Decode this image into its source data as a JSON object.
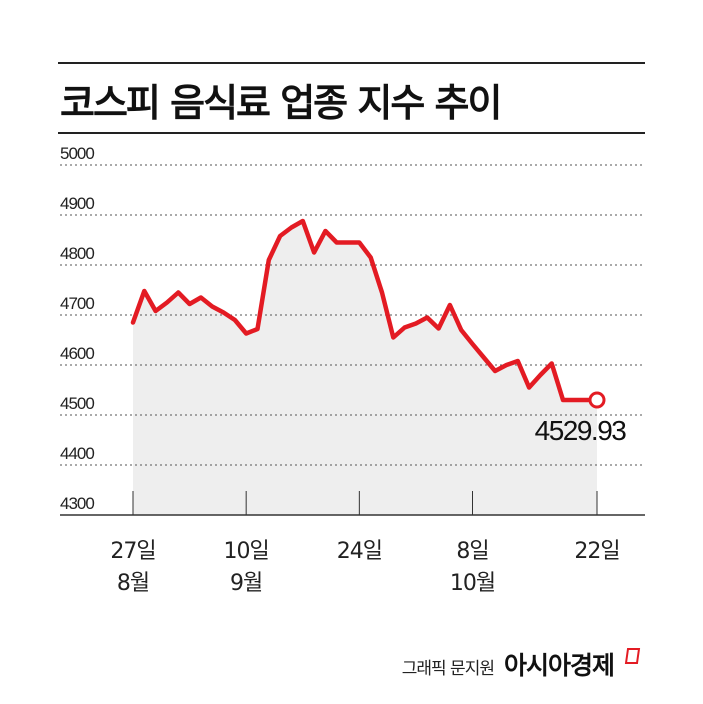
{
  "chart_data": {
    "type": "line",
    "title": "코스피 음식료 업종 지수 추이",
    "ylim": [
      4300,
      5000
    ],
    "yticks": [
      5000,
      4900,
      4800,
      4700,
      4600,
      4500,
      4400,
      4300
    ],
    "x_tick_labels": [
      {
        "index": 0,
        "lines": [
          "27일",
          "8월"
        ]
      },
      {
        "index": 10,
        "lines": [
          "10일",
          "9월"
        ]
      },
      {
        "index": 20,
        "lines": [
          "24일"
        ]
      },
      {
        "index": 30,
        "lines": [
          "8일",
          "10월"
        ]
      },
      {
        "index": 41,
        "lines": [
          "22일"
        ]
      }
    ],
    "series": [
      {
        "values": [
          4685,
          4748,
          4708,
          4725,
          4745,
          4722,
          4735,
          4717,
          4705,
          4690,
          4663,
          4672,
          4810,
          4858,
          4875,
          4888,
          4825,
          4868,
          4845,
          4845,
          4845,
          4815,
          4745,
          4655,
          4675,
          4683,
          4695,
          4673,
          4720,
          4670,
          4642,
          4615,
          4588,
          4600,
          4608,
          4555,
          4580,
          4603,
          4530,
          4530,
          4530,
          4529.93
        ],
        "color": "#e31b23"
      }
    ],
    "last_value_label": "4529.93",
    "colors": {
      "line": "#e31b23",
      "area": "#eeeeee",
      "grid": "#555555"
    }
  },
  "credit": {
    "text": "그래픽 문지원",
    "brand": "아시아경제"
  }
}
